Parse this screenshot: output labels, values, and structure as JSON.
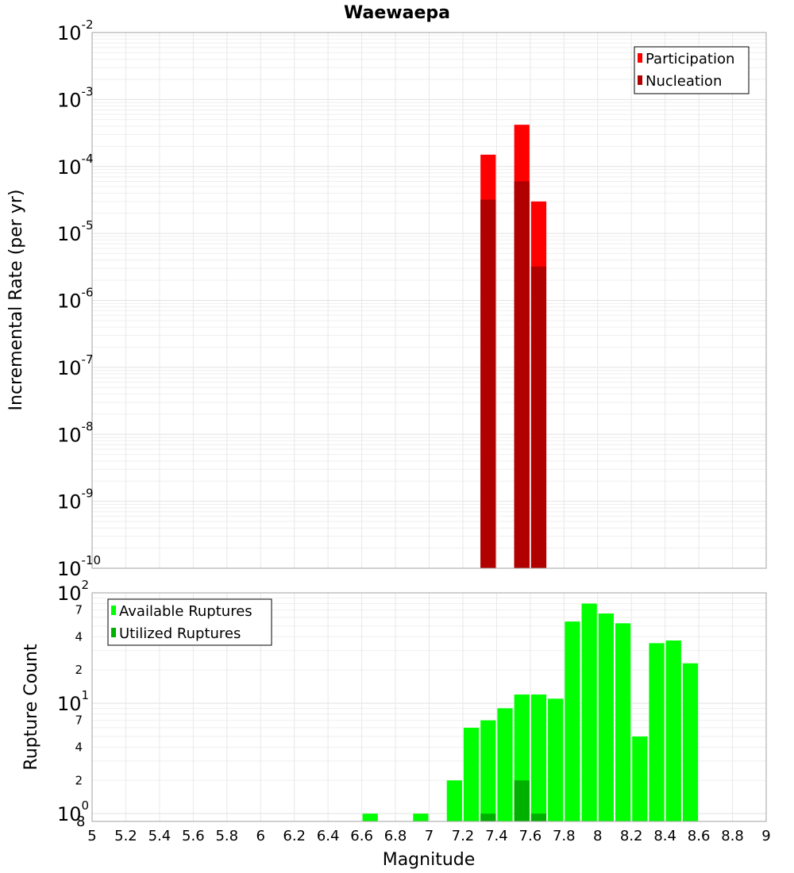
{
  "chart_data": [
    {
      "type": "bar",
      "title": "Waewaepa",
      "xlabel": "",
      "ylabel": "Incremental Rate (per yr)",
      "yscale": "log",
      "ylim": [
        1e-10,
        0.01
      ],
      "xlim": [
        5,
        9
      ],
      "bin_width": 0.1,
      "grid": true,
      "legend_position": "top-right",
      "y_ticks": [
        {
          "base": "10",
          "exp": "-10"
        },
        {
          "base": "10",
          "exp": "-9"
        },
        {
          "base": "10",
          "exp": "-8"
        },
        {
          "base": "10",
          "exp": "-7"
        },
        {
          "base": "10",
          "exp": "-6"
        },
        {
          "base": "10",
          "exp": "-5"
        },
        {
          "base": "10",
          "exp": "-4"
        },
        {
          "base": "10",
          "exp": "-3"
        },
        {
          "base": "10",
          "exp": "-2"
        }
      ],
      "series": [
        {
          "name": "Participation",
          "color": "#ff0000",
          "x": [
            7.35,
            7.55,
            7.65
          ],
          "values": [
            0.00015,
            0.00042,
            3e-05
          ]
        },
        {
          "name": "Nucleation",
          "color": "#b00000",
          "x": [
            7.35,
            7.55,
            7.65
          ],
          "values": [
            3.2e-05,
            6e-05,
            3.2e-06
          ]
        }
      ]
    },
    {
      "type": "bar",
      "title": "",
      "xlabel": "Magnitude",
      "ylabel": "Rupture Count",
      "yscale": "log",
      "ylim": [
        0.85,
        100
      ],
      "xlim": [
        5,
        9
      ],
      "bin_width": 0.1,
      "grid": true,
      "legend_position": "top-left",
      "x_ticks": [
        "5",
        "5.2",
        "5.4",
        "5.6",
        "5.8",
        "6",
        "6.2",
        "6.4",
        "6.6",
        "6.8",
        "7",
        "7.2",
        "7.4",
        "7.6",
        "7.8",
        "8",
        "8.2",
        "8.4",
        "8.6",
        "8.8",
        "9"
      ],
      "y_decade_ticks": [
        {
          "value": 1,
          "base": "10",
          "exp": "0",
          "extra": "8"
        },
        {
          "value": 10,
          "base": "10",
          "exp": "1"
        },
        {
          "value": 100,
          "base": "10",
          "exp": "2"
        }
      ],
      "y_minor_ticks": [
        {
          "value": 2,
          "label": "2"
        },
        {
          "value": 4,
          "label": "4"
        },
        {
          "value": 7,
          "label": "7"
        },
        {
          "value": 20,
          "label": "2"
        },
        {
          "value": 40,
          "label": "4"
        },
        {
          "value": 70,
          "label": "7"
        }
      ],
      "series": [
        {
          "name": "Available Ruptures",
          "color": "#00ff00",
          "x": [
            6.65,
            6.95,
            7.15,
            7.25,
            7.35,
            7.45,
            7.55,
            7.65,
            7.75,
            7.85,
            7.95,
            8.05,
            8.15,
            8.25,
            8.35,
            8.45,
            8.55
          ],
          "values": [
            1,
            1,
            2,
            6,
            7,
            9,
            12,
            12,
            11,
            55,
            80,
            65,
            53,
            5,
            35,
            37,
            23
          ]
        },
        {
          "name": "Utilized Ruptures",
          "color": "#00b000",
          "x": [
            7.35,
            7.55,
            7.65
          ],
          "values": [
            1,
            2,
            1
          ]
        }
      ]
    }
  ]
}
